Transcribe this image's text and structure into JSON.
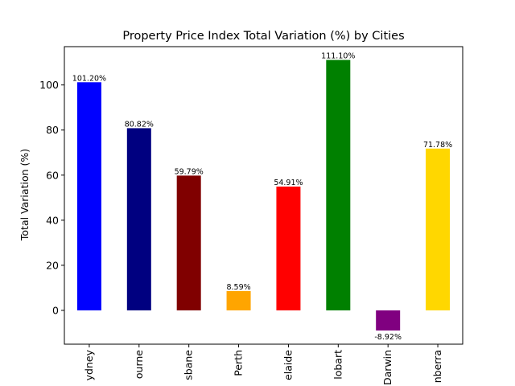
{
  "chart_data": {
    "type": "bar",
    "title": "Property Price Index Total Variation (%) by Cities",
    "xlabel": "",
    "ylabel": "Total Variation (%)",
    "ylim": [
      -15,
      117
    ],
    "yticks": [
      0,
      20,
      40,
      60,
      80,
      100
    ],
    "tick_labels": [
      "ydney",
      "ourne",
      "sbane",
      "Perth",
      "elaide",
      "lobart",
      "Darwin",
      "nberra"
    ],
    "categories": [
      "Sydney",
      "Melbourne",
      "Brisbane",
      "Perth",
      "Adelaide",
      "Hobart",
      "Darwin",
      "Canberra"
    ],
    "values": [
      101.2,
      80.82,
      59.79,
      8.59,
      54.91,
      111.1,
      -8.92,
      71.78
    ],
    "data_labels": [
      "101.20%",
      "80.82%",
      "59.79%",
      "8.59%",
      "54.91%",
      "111.10%",
      "-8.92%",
      "71.78%"
    ],
    "colors": [
      "#0000ff",
      "#000080",
      "#800000",
      "#ffa500",
      "#ff0000",
      "#008000",
      "#800080",
      "#ffd700"
    ],
    "grid": false,
    "legend": "none"
  }
}
